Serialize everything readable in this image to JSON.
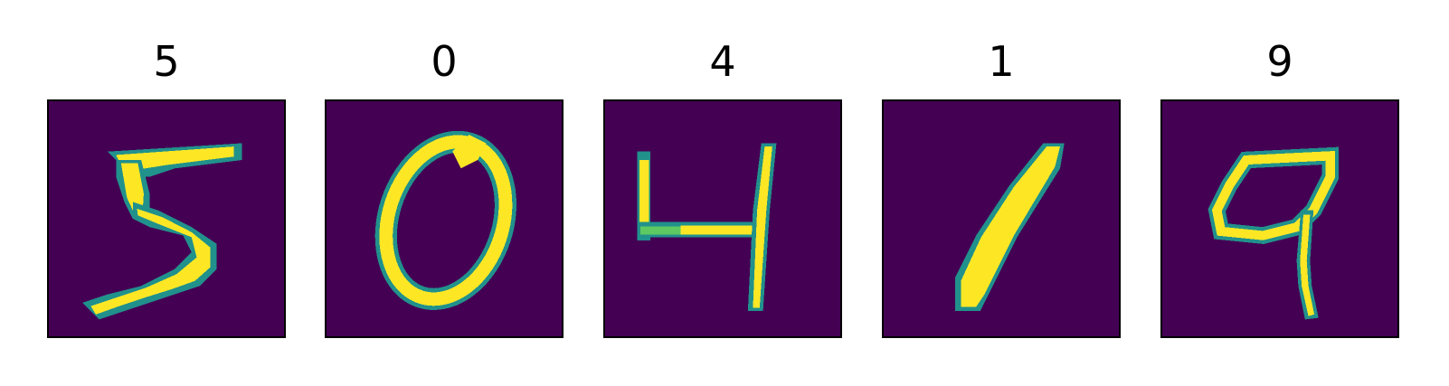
{
  "figure": {
    "colors": {
      "background": "#440154",
      "low": "#31688e",
      "mid": "#21918c",
      "high": "#5ec962",
      "max": "#fde725"
    },
    "panels": [
      {
        "label": "5",
        "shape": "digit-five"
      },
      {
        "label": "0",
        "shape": "digit-zero"
      },
      {
        "label": "4",
        "shape": "digit-four"
      },
      {
        "label": "1",
        "shape": "digit-one"
      },
      {
        "label": "9",
        "shape": "digit-nine"
      }
    ]
  }
}
